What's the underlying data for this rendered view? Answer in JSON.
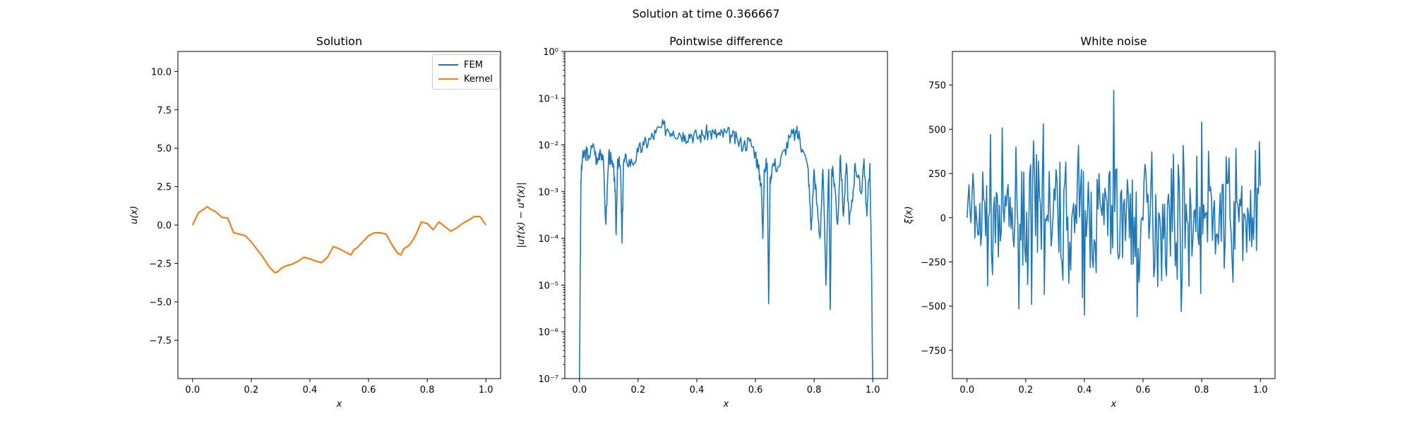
{
  "suptitle": "Solution at time 0.366667",
  "colors": {
    "fem": "#1f77b4",
    "kernel": "#ff7f0e",
    "diff": "#1f77b4",
    "noise": "#1f77b4"
  },
  "chart_data": [
    {
      "type": "line",
      "title": "Solution",
      "xlabel": "x",
      "ylabel": "u(x)",
      "xlim": [
        -0.05,
        1.05
      ],
      "ylim": [
        -10,
        11.3
      ],
      "xticks": [
        "0.0",
        "0.2",
        "0.4",
        "0.6",
        "0.8",
        "1.0"
      ],
      "yticks": [
        "10.0",
        "7.5",
        "5.0",
        "2.5",
        "0.0",
        "−2.5",
        "−5.0",
        "−7.5"
      ],
      "legend": "top-right",
      "x": [
        0.0,
        0.02,
        0.04,
        0.05,
        0.06,
        0.08,
        0.1,
        0.12,
        0.14,
        0.15,
        0.16,
        0.18,
        0.2,
        0.22,
        0.24,
        0.26,
        0.28,
        0.29,
        0.3,
        0.32,
        0.34,
        0.36,
        0.38,
        0.4,
        0.42,
        0.44,
        0.46,
        0.48,
        0.5,
        0.52,
        0.54,
        0.55,
        0.56,
        0.58,
        0.6,
        0.62,
        0.63,
        0.64,
        0.66,
        0.68,
        0.7,
        0.71,
        0.72,
        0.74,
        0.76,
        0.78,
        0.8,
        0.82,
        0.84,
        0.86,
        0.88,
        0.9,
        0.92,
        0.94,
        0.96,
        0.98,
        1.0
      ],
      "series": [
        {
          "name": "FEM",
          "values": [
            0.0,
            0.8,
            1.05,
            1.2,
            1.05,
            0.85,
            0.5,
            0.45,
            -0.5,
            -0.55,
            -0.6,
            -0.7,
            -1.1,
            -1.6,
            -2.1,
            -2.7,
            -3.1,
            -3.05,
            -2.85,
            -2.65,
            -2.55,
            -2.35,
            -2.1,
            -2.2,
            -2.35,
            -2.45,
            -2.1,
            -1.4,
            -1.55,
            -1.75,
            -1.95,
            -1.6,
            -1.5,
            -1.1,
            -0.7,
            -0.5,
            -0.5,
            -0.5,
            -0.6,
            -1.3,
            -1.85,
            -1.95,
            -1.55,
            -1.3,
            -0.7,
            0.2,
            0.1,
            -0.3,
            0.2,
            -0.1,
            -0.4,
            -0.2,
            0.1,
            0.3,
            0.55,
            0.55,
            0.0
          ]
        },
        {
          "name": "Kernel",
          "values": [
            0.0,
            0.8,
            1.05,
            1.2,
            1.05,
            0.85,
            0.5,
            0.45,
            -0.5,
            -0.55,
            -0.6,
            -0.7,
            -1.1,
            -1.6,
            -2.1,
            -2.7,
            -3.1,
            -3.05,
            -2.85,
            -2.65,
            -2.55,
            -2.35,
            -2.1,
            -2.2,
            -2.35,
            -2.45,
            -2.1,
            -1.4,
            -1.55,
            -1.75,
            -1.95,
            -1.6,
            -1.5,
            -1.1,
            -0.7,
            -0.5,
            -0.5,
            -0.5,
            -0.6,
            -1.3,
            -1.85,
            -1.95,
            -1.55,
            -1.3,
            -0.7,
            0.2,
            0.1,
            -0.3,
            0.2,
            -0.1,
            -0.4,
            -0.2,
            0.1,
            0.3,
            0.55,
            0.55,
            0.0
          ]
        }
      ]
    },
    {
      "type": "line",
      "title": "Pointwise difference",
      "xlabel": "x",
      "ylabel": "|u†(x) − u*(x)|",
      "xlim": [
        -0.05,
        1.05
      ],
      "ylim": [
        1e-07,
        1
      ],
      "yscale": "log",
      "xticks": [
        "0.0",
        "0.2",
        "0.4",
        "0.6",
        "0.8",
        "1.0"
      ],
      "yticks": [
        "10⁰",
        "10⁻¹",
        "10⁻²",
        "10⁻³",
        "10⁻⁴",
        "10⁻⁵",
        "10⁻⁶",
        "10⁻⁷"
      ],
      "x": [
        0.0,
        0.005,
        0.01,
        0.02,
        0.03,
        0.05,
        0.06,
        0.07,
        0.08,
        0.09,
        0.1,
        0.11,
        0.12,
        0.125,
        0.13,
        0.14,
        0.145,
        0.15,
        0.16,
        0.18,
        0.2,
        0.22,
        0.24,
        0.26,
        0.28,
        0.3,
        0.32,
        0.34,
        0.36,
        0.38,
        0.4,
        0.42,
        0.44,
        0.46,
        0.48,
        0.5,
        0.52,
        0.54,
        0.56,
        0.58,
        0.6,
        0.61,
        0.62,
        0.625,
        0.63,
        0.64,
        0.645,
        0.65,
        0.66,
        0.68,
        0.7,
        0.72,
        0.74,
        0.75,
        0.76,
        0.78,
        0.79,
        0.8,
        0.81,
        0.82,
        0.83,
        0.84,
        0.85,
        0.855,
        0.86,
        0.87,
        0.88,
        0.89,
        0.9,
        0.91,
        0.92,
        0.93,
        0.94,
        0.95,
        0.96,
        0.97,
        0.98,
        0.99,
        0.995,
        1.0
      ],
      "values": [
        1e-07,
        0.0018,
        0.005,
        0.007,
        0.006,
        0.009,
        0.004,
        0.008,
        0.006,
        0.0002,
        0.007,
        0.004,
        0.002,
        0.00012,
        0.005,
        0.003,
        8e-05,
        0.004,
        0.005,
        0.004,
        0.007,
        0.01,
        0.013,
        0.018,
        0.024,
        0.022,
        0.02,
        0.018,
        0.016,
        0.017,
        0.015,
        0.016,
        0.019,
        0.017,
        0.016,
        0.018,
        0.015,
        0.012,
        0.01,
        0.012,
        0.007,
        0.003,
        0.0015,
        0.0001,
        0.003,
        0.004,
        4e-06,
        0.002,
        0.004,
        0.0035,
        0.008,
        0.015,
        0.018,
        0.015,
        0.008,
        0.003,
        0.00015,
        0.003,
        0.0005,
        0.0001,
        0.003,
        1e-05,
        0.003,
        3e-06,
        0.003,
        0.0015,
        0.0002,
        0.006,
        0.0003,
        0.004,
        0.0002,
        0.0006,
        0.004,
        0.002,
        0.0009,
        0.005,
        0.0003,
        0.004,
        5e-05,
        1e-07
      ]
    },
    {
      "type": "line",
      "title": "White noise",
      "xlabel": "x",
      "ylabel": "ξ(x)",
      "xlim": [
        -0.05,
        1.05
      ],
      "ylim": [
        -910,
        940
      ],
      "xticks": [
        "0.0",
        "0.2",
        "0.4",
        "0.6",
        "0.8",
        "1.0"
      ],
      "yticks": [
        "750",
        "500",
        "250",
        "0",
        "−250",
        "−500",
        "−750"
      ],
      "seed": 7,
      "n_points": 300
    }
  ]
}
